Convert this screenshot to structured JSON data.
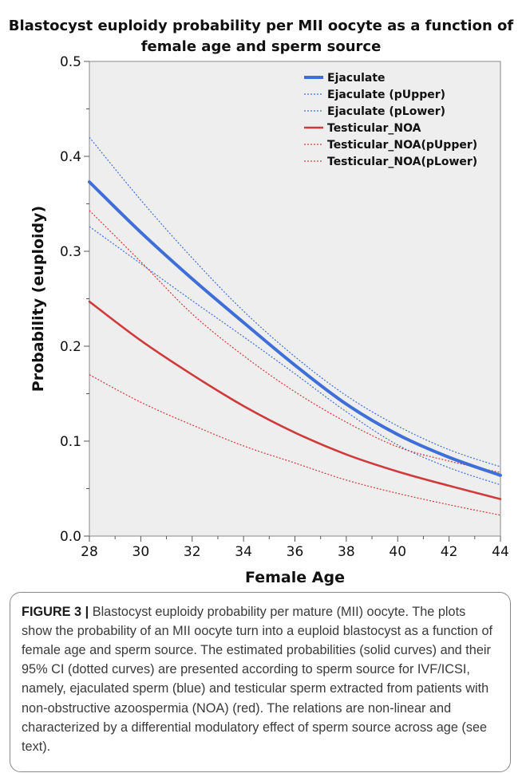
{
  "chart_data": {
    "type": "line",
    "title": "Blastocyst euploidy probability per MII oocyte as a function of female age and sperm source",
    "title_lines": [
      "Blastocyst euploidy probability per MII oocyte as a function of",
      "female age and sperm source"
    ],
    "xlabel": "Female Age",
    "ylabel": "Probability (euploidy)",
    "xlim": [
      28,
      44
    ],
    "ylim": [
      0.0,
      0.5
    ],
    "x_ticks": [
      "28",
      "30",
      "32",
      "34",
      "36",
      "38",
      "40",
      "42",
      "44"
    ],
    "y_ticks": [
      "0.0",
      "0.1",
      "0.2",
      "0.3",
      "0.4",
      "0.5"
    ],
    "x": [
      28,
      30,
      32,
      34,
      36,
      38,
      40,
      42,
      44
    ],
    "grid": false,
    "legend_position": "top-right",
    "series": [
      {
        "name": "Ejaculate",
        "color": "#3e6fd8",
        "style": "solid",
        "y": [
          0.373,
          0.32,
          0.271,
          0.225,
          0.18,
          0.139,
          0.107,
          0.083,
          0.064
        ]
      },
      {
        "name": "Ejaculate (pUpper)",
        "color": "#3e6fd8",
        "style": "dotted",
        "y": [
          0.42,
          0.354,
          0.293,
          0.237,
          0.189,
          0.148,
          0.116,
          0.091,
          0.073
        ]
      },
      {
        "name": "Ejaculate (pLower)",
        "color": "#3e6fd8",
        "style": "dotted",
        "y": [
          0.326,
          0.287,
          0.248,
          0.21,
          0.171,
          0.131,
          0.096,
          0.072,
          0.054
        ]
      },
      {
        "name": "Testicular_NOA",
        "color": "#cf3b3b",
        "style": "solid",
        "y": [
          0.247,
          0.206,
          0.17,
          0.137,
          0.109,
          0.086,
          0.068,
          0.053,
          0.039
        ]
      },
      {
        "name": "Testicular_NOA(pUpper)",
        "color": "#cf3b3b",
        "style": "dotted",
        "y": [
          0.343,
          0.289,
          0.234,
          0.19,
          0.152,
          0.12,
          0.094,
          0.079,
          0.067
        ]
      },
      {
        "name": "Testicular_NOA(pLower)",
        "color": "#cf3b3b",
        "style": "dotted",
        "y": [
          0.17,
          0.141,
          0.117,
          0.095,
          0.077,
          0.059,
          0.045,
          0.033,
          0.022
        ]
      }
    ]
  },
  "caption": {
    "label": "FIGURE 3 |",
    "text": "Blastocyst euploidy probability per mature (MII) oocyte. The plots show the probability of an MII oocyte turn into a euploid blastocyst as a function of female age and sperm source. The estimated probabilities (solid curves) and their 95% CI (dotted curves) are presented according to sperm source for IVF/ICSI, namely, ejaculated sperm (blue) and testicular sperm extracted from patients with non-obstructive azoospermia (NOA) (red). The relations are non-linear and characterized by a differential modulatory effect of sperm source across age (see text)."
  }
}
